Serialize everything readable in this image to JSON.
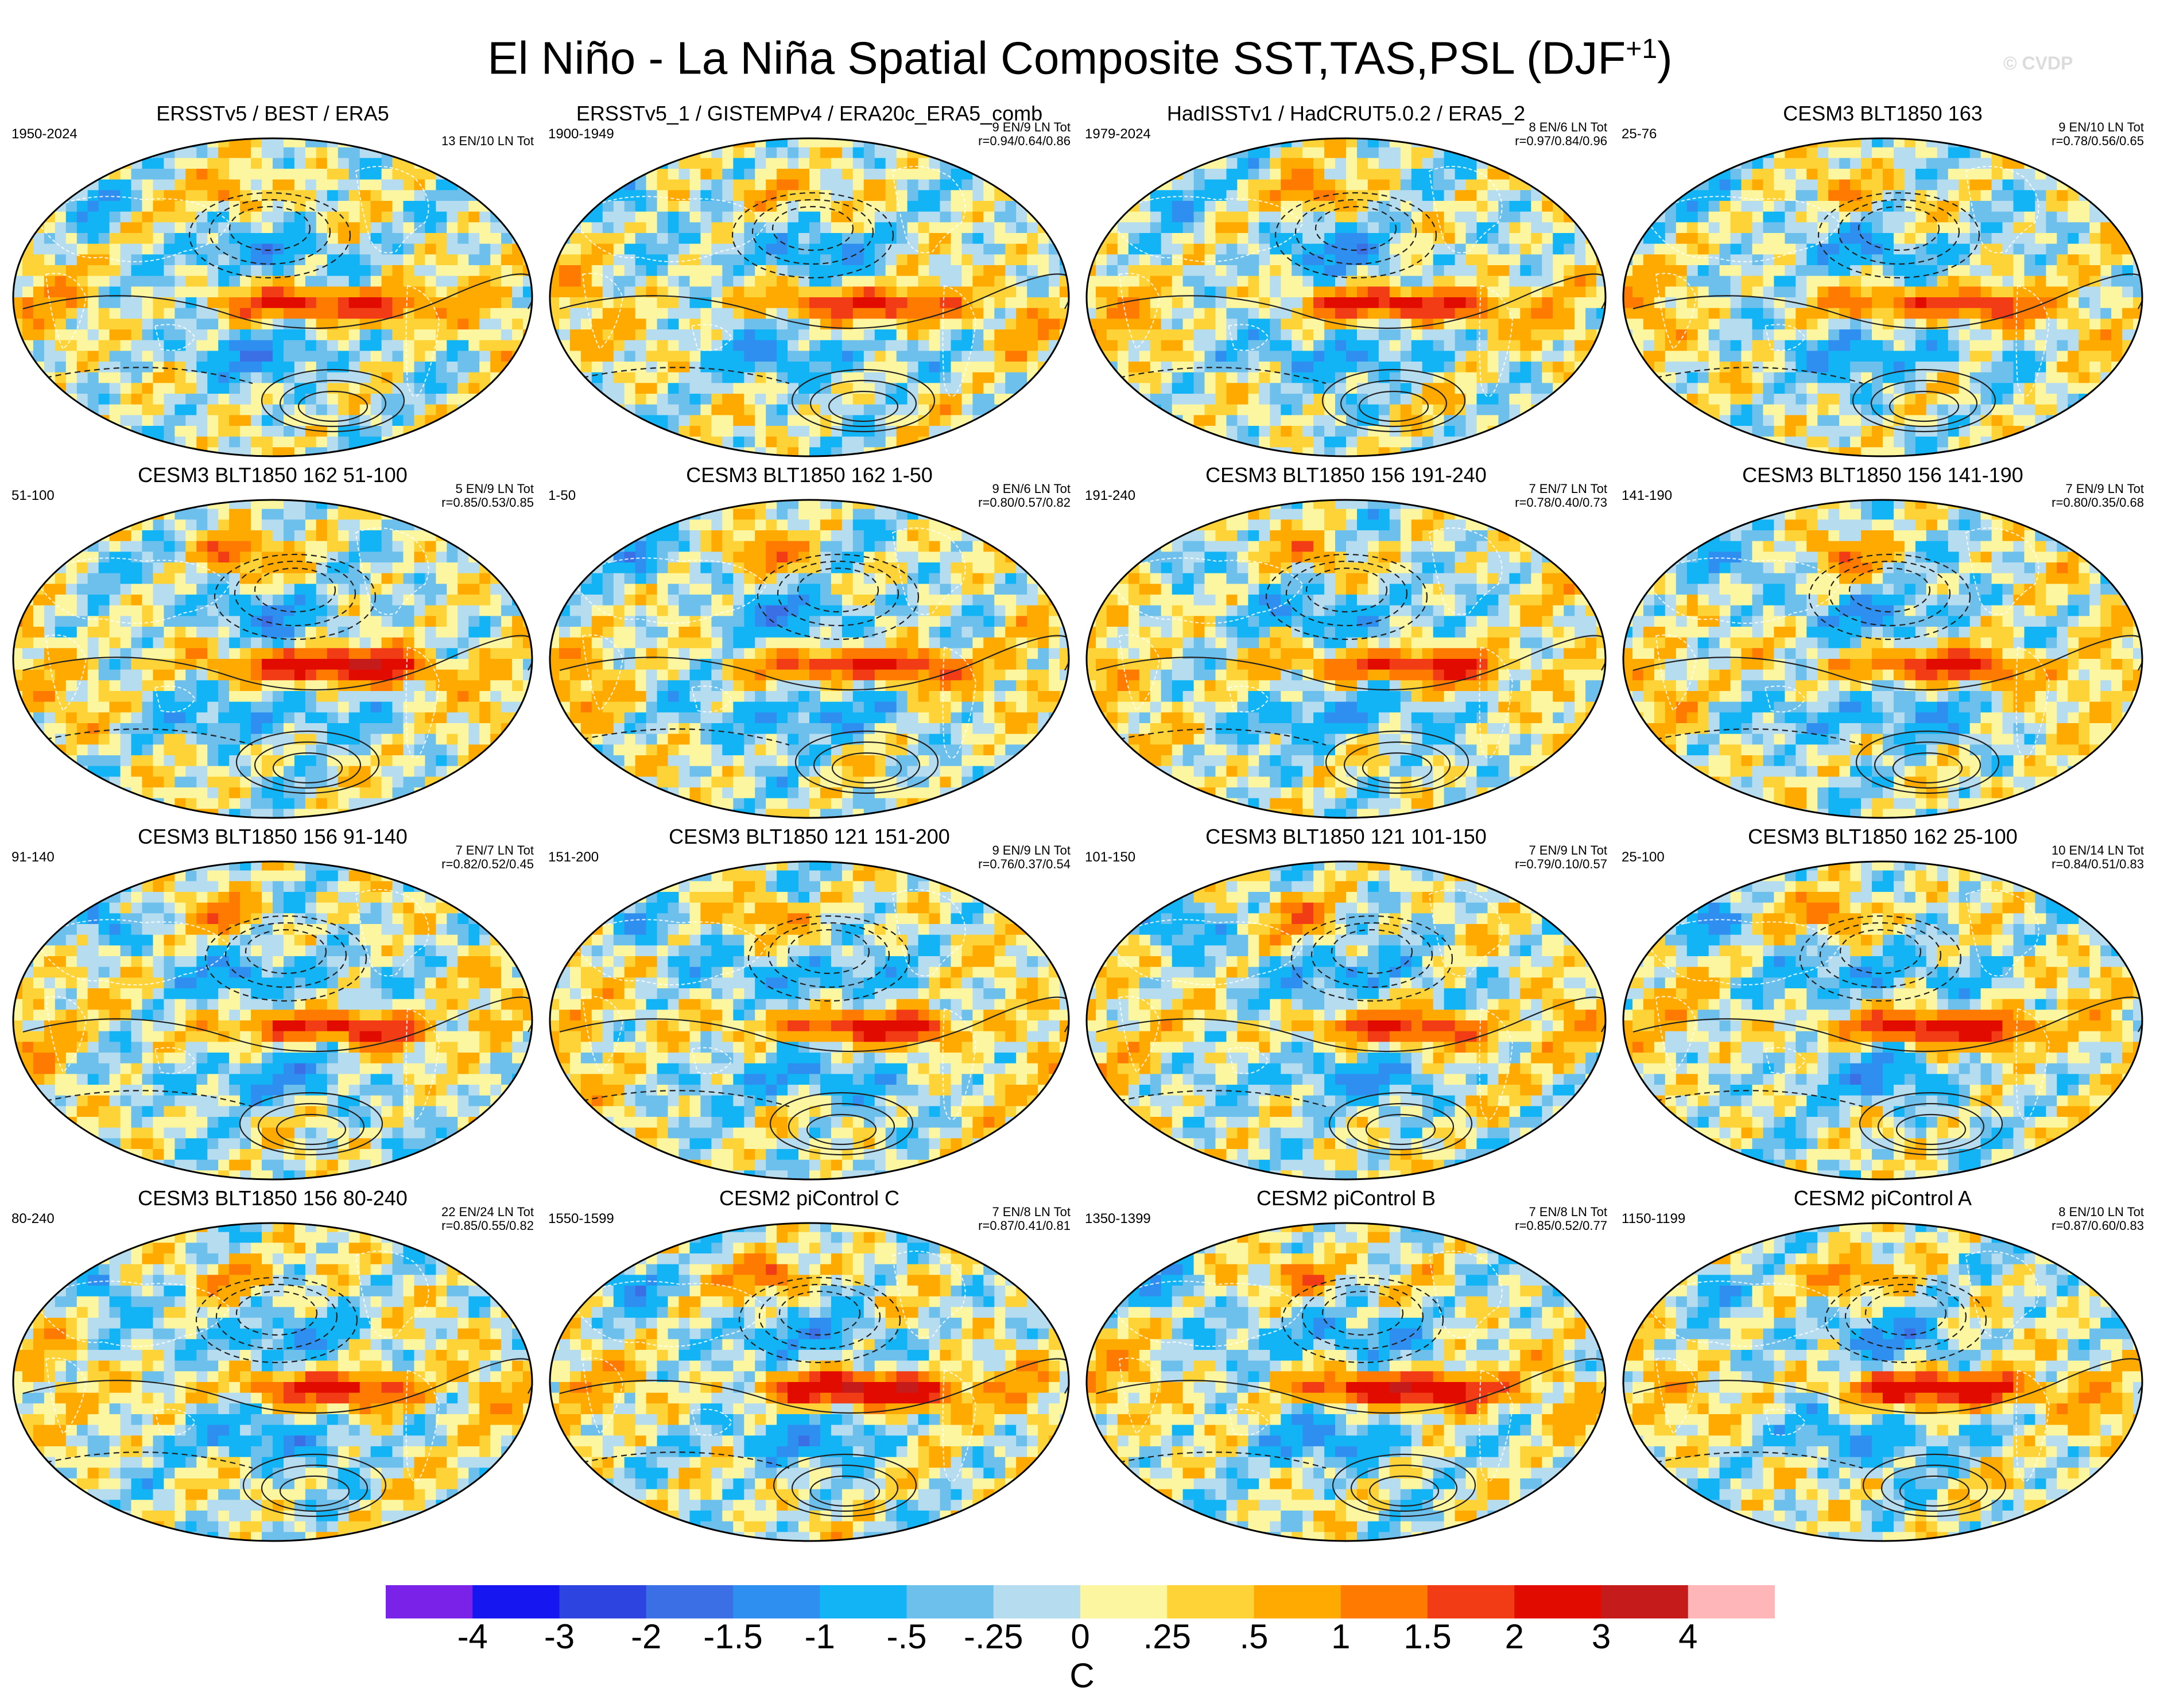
{
  "figure": {
    "title_main": "El Niño - La Niña Spatial Composite SST,TAS,PSL (DJF",
    "title_sup": "+1",
    "title_end": ")",
    "watermark": "© CVDP",
    "units": "C"
  },
  "chart_data": {
    "type": "heatmap",
    "title": "El Niño - La Niña Spatial Composite SST,TAS,PSL (DJF+1)",
    "colorbar": {
      "colors": [
        "#7b22e8",
        "#1616f0",
        "#2e44e0",
        "#3a6fe6",
        "#2f8ff0",
        "#12b4f5",
        "#6ec0ec",
        "#b6dcf0",
        "#fdf6a0",
        "#fed338",
        "#ffaa00",
        "#ff7a00",
        "#f23c16",
        "#e10b00",
        "#c51b1b",
        "#ffb6b8"
      ],
      "tick_labels": [
        "-4",
        "-3",
        "-2",
        "-1.5",
        "-1",
        "-.5",
        "-.25",
        "0",
        ".25",
        ".5",
        "1",
        "1.5",
        "2",
        "3",
        "4"
      ],
      "label": "C"
    },
    "panels": [
      {
        "title": "ERSSTv5 / BEST / ERA5",
        "years": "1950-2024",
        "events": "13 EN/10 LN Tot",
        "corr": "",
        "intensity": 0.9,
        "style": 0
      },
      {
        "title": "ERSSTv5_1 / GISTEMPv4 / ERA20c_ERA5_comb",
        "years": "1900-1949",
        "events": "9 EN/9 LN Tot",
        "corr": "r=0.94/0.64/0.86",
        "intensity": 0.8,
        "style": 1
      },
      {
        "title": "HadISSTv1 / HadCRUT5.0.2 / ERA5_2",
        "years": "1979-2024",
        "events": "8 EN/6 LN Tot",
        "corr": "r=0.97/0.84/0.96",
        "intensity": 0.95,
        "style": 2
      },
      {
        "title": "CESM3 BLT1850 163",
        "years": "25-76",
        "events": "9 EN/10 LN Tot",
        "corr": "r=0.78/0.56/0.65",
        "intensity": 0.8,
        "style": 3
      },
      {
        "title": "CESM3 BLT1850 162 51-100",
        "years": "51-100",
        "events": "5 EN/9 LN Tot",
        "corr": "r=0.85/0.53/0.85",
        "intensity": 1.2,
        "style": 4
      },
      {
        "title": "CESM3 BLT1850 162 1-50",
        "years": "1-50",
        "events": "9 EN/6 LN Tot",
        "corr": "r=0.80/0.57/0.82",
        "intensity": 0.9,
        "style": 5
      },
      {
        "title": "CESM3 BLT1850 156 191-240",
        "years": "191-240",
        "events": "7 EN/7 LN Tot",
        "corr": "r=0.78/0.40/0.73",
        "intensity": 0.85,
        "style": 6
      },
      {
        "title": "CESM3 BLT1850 156 141-190",
        "years": "141-190",
        "events": "7 EN/9 LN Tot",
        "corr": "r=0.80/0.35/0.68",
        "intensity": 0.8,
        "style": 7
      },
      {
        "title": "CESM3 BLT1850 156 91-140",
        "years": "91-140",
        "events": "7 EN/7 LN Tot",
        "corr": "r=0.82/0.52/0.45",
        "intensity": 0.85,
        "style": 8
      },
      {
        "title": "CESM3 BLT1850 121 151-200",
        "years": "151-200",
        "events": "9 EN/9 LN Tot",
        "corr": "r=0.76/0.37/0.54",
        "intensity": 0.85,
        "style": 9
      },
      {
        "title": "CESM3 BLT1850 121 101-150",
        "years": "101-150",
        "events": "7 EN/9 LN Tot",
        "corr": "r=0.79/0.10/0.57",
        "intensity": 0.8,
        "style": 10
      },
      {
        "title": "CESM3 BLT1850 162 25-100",
        "years": "25-100",
        "events": "10 EN/14 LN Tot",
        "corr": "r=0.84/0.51/0.83",
        "intensity": 1.05,
        "style": 11
      },
      {
        "title": "CESM3 BLT1850 156 80-240",
        "years": "80-240",
        "events": "22 EN/24 LN Tot",
        "corr": "r=0.85/0.55/0.82",
        "intensity": 0.85,
        "style": 12
      },
      {
        "title": "CESM2 piControl C",
        "years": "1550-1599",
        "events": "7 EN/8 LN Tot",
        "corr": "r=0.87/0.41/0.81",
        "intensity": 1.25,
        "style": 13
      },
      {
        "title": "CESM2 piControl B",
        "years": "1350-1399",
        "events": "7 EN/8 LN Tot",
        "corr": "r=0.85/0.52/0.77",
        "intensity": 1.2,
        "style": 14
      },
      {
        "title": "CESM2 piControl A",
        "years": "1150-1199",
        "events": "8 EN/10 LN Tot",
        "corr": "r=0.87/0.60/0.83",
        "intensity": 1.1,
        "style": 15
      }
    ]
  }
}
